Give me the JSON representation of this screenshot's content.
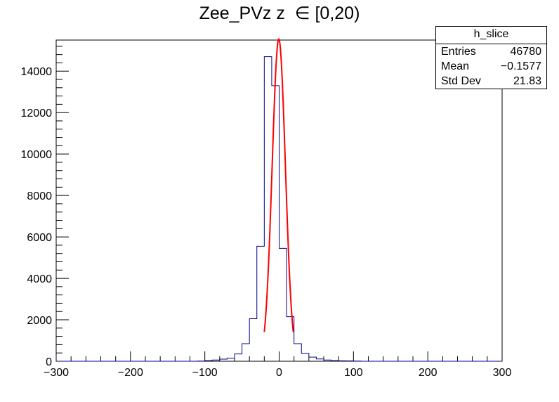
{
  "chart_data": {
    "type": "histogram",
    "title": "Zee_PVz z  ∈ [0,20)",
    "xlabel": "",
    "ylabel": "",
    "xlim": [
      -300,
      300
    ],
    "ylim": [
      0,
      15500
    ],
    "x_ticks": [
      -300,
      -200,
      -100,
      0,
      100,
      200,
      300
    ],
    "x_tick_labels": [
      "−300",
      "−200",
      "−100",
      "0",
      "100",
      "200",
      "300"
    ],
    "y_ticks": [
      0,
      2000,
      4000,
      6000,
      8000,
      10000,
      12000,
      14000
    ],
    "y_tick_labels": [
      "0",
      "2000",
      "4000",
      "6000",
      "8000",
      "10000",
      "12000",
      "14000"
    ],
    "grid": false,
    "series": [
      {
        "bin_width": 10,
        "bin_edges_start": -300,
        "bin_low_edges": [
          -110,
          -100,
          -90,
          -80,
          -70,
          -60,
          -50,
          -40,
          -30,
          -20,
          -10,
          0,
          10,
          20,
          30,
          40,
          50,
          60,
          70,
          80,
          90,
          100,
          110
        ],
        "counts": [
          10,
          30,
          60,
          100,
          150,
          350,
          850,
          2050,
          5550,
          14700,
          13300,
          5450,
          2150,
          850,
          380,
          200,
          110,
          60,
          30,
          20,
          15,
          10,
          0
        ],
        "color": "#00008b"
      },
      {
        "type": "gaussian-fit",
        "amplitude": 15550,
        "mean": -0.5,
        "sigma": 8.9,
        "x_range": [
          -20,
          19
        ],
        "color": "#ff0000"
      }
    ],
    "stats_box": {
      "title": "h_slice",
      "rows": [
        {
          "label": "Entries",
          "value": "46780"
        },
        {
          "label": "Mean",
          "value": "−0.1577"
        },
        {
          "label": "Std Dev",
          "value": "21.83"
        }
      ]
    }
  }
}
